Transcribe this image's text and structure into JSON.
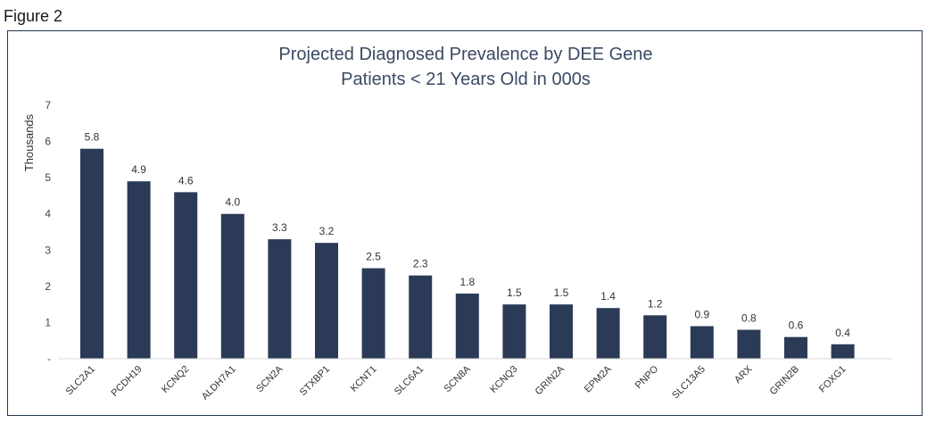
{
  "figure_label": "Figure 2",
  "chart_data": {
    "type": "bar",
    "title": [
      "Projected Diagnosed Prevalence by DEE Gene",
      "Patients < 21 Years Old in 000s"
    ],
    "xlabel": "",
    "ylabel": "Thousands",
    "ylim": [
      0,
      7
    ],
    "yticks": [
      "-",
      "1",
      "2",
      "3",
      "4",
      "5",
      "6",
      "7"
    ],
    "categories": [
      "SLC2A1",
      "PCDH19",
      "KCNQ2",
      "ALDH7A1",
      "SCN2A",
      "STXBP1",
      "KCNT1",
      "SLC6A1",
      "SCN8A",
      "KCNQ3",
      "GRIN2A",
      "EPM2A",
      "PNPO",
      "SLC13A5",
      "ARX",
      "GRIN2B",
      "FOXG1"
    ],
    "values": [
      5.8,
      4.9,
      4.6,
      4.0,
      3.3,
      3.2,
      2.5,
      2.3,
      1.8,
      1.5,
      1.5,
      1.4,
      1.2,
      0.9,
      0.8,
      0.6,
      0.4
    ],
    "data_labels": [
      "5.8",
      "4.9",
      "4.6",
      "4.0",
      "3.3",
      "3.2",
      "2.5",
      "2.3",
      "1.8",
      "1.5",
      "1.5",
      "1.4",
      "1.2",
      "0.9",
      "0.8",
      "0.6",
      "0.4"
    ],
    "bar_color": "#2b3a57",
    "grid": false,
    "legend": "none"
  }
}
